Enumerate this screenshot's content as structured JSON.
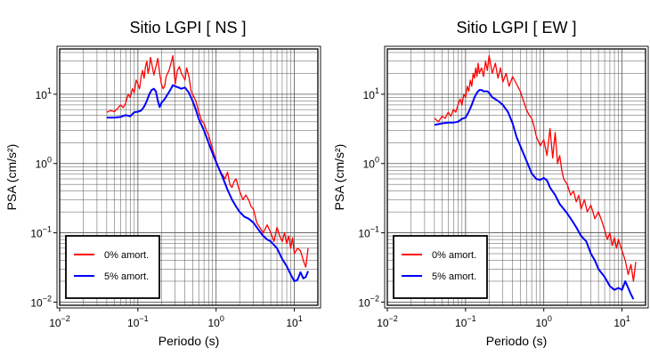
{
  "chart_data": [
    {
      "type": "line",
      "title": "Sitio LGPI [ NS ]",
      "xlabel": "Periodo (s)",
      "ylabel": "PSA (cm/s²)",
      "x_scale": "log",
      "y_scale": "log",
      "xlim": [
        0.01,
        20
      ],
      "ylim": [
        0.009,
        45
      ],
      "xticks": [
        {
          "base": "10",
          "exp": "−2"
        },
        {
          "base": "10",
          "exp": "−1"
        },
        {
          "base": "10",
          "exp": "0"
        },
        {
          "base": "10",
          "exp": "1"
        }
      ],
      "yticks": [
        {
          "base": "10",
          "exp": "−2"
        },
        {
          "base": "10",
          "exp": "−1"
        },
        {
          "base": "10",
          "exp": "0"
        },
        {
          "base": "10",
          "exp": "1"
        }
      ],
      "grid": true,
      "legend_position": "bottom-left",
      "series": [
        {
          "name": "0% amort.",
          "color": "#ff0000",
          "x": [
            0.04,
            0.045,
            0.05,
            0.055,
            0.06,
            0.065,
            0.07,
            0.075,
            0.08,
            0.085,
            0.09,
            0.095,
            0.1,
            0.105,
            0.11,
            0.115,
            0.12,
            0.125,
            0.13,
            0.135,
            0.14,
            0.145,
            0.15,
            0.16,
            0.17,
            0.18,
            0.19,
            0.2,
            0.21,
            0.22,
            0.23,
            0.24,
            0.25,
            0.26,
            0.27,
            0.28,
            0.3,
            0.32,
            0.34,
            0.36,
            0.38,
            0.4,
            0.42,
            0.45,
            0.48,
            0.5,
            0.55,
            0.6,
            0.65,
            0.7,
            0.75,
            0.8,
            0.9,
            1.0,
            1.1,
            1.2,
            1.3,
            1.4,
            1.5,
            1.6,
            1.7,
            1.8,
            2.0,
            2.2,
            2.4,
            2.6,
            2.8,
            3.0,
            3.3,
            3.6,
            4.0,
            4.5,
            5.0,
            5.5,
            6.0,
            6.5,
            7.0,
            7.5,
            8.0,
            8.5,
            9.0,
            9.5,
            10.0,
            11.0,
            12.0,
            13.0,
            14.0,
            15.0
          ],
          "values": [
            5.5,
            5.8,
            5.6,
            6.2,
            7.0,
            6.4,
            7.5,
            10.0,
            9.0,
            12.0,
            10.5,
            16.0,
            14.0,
            12.0,
            18.0,
            22.0,
            17.0,
            25.0,
            30.0,
            20.0,
            24.0,
            34.0,
            28.0,
            19.0,
            25.0,
            33.0,
            20.0,
            14.0,
            12.0,
            13.0,
            18.0,
            20.0,
            22.0,
            26.0,
            30.0,
            36.0,
            14.0,
            22.0,
            25.0,
            20.0,
            18.0,
            16.0,
            24.0,
            18.0,
            11.0,
            10.0,
            8.0,
            5.6,
            4.2,
            3.8,
            3.0,
            2.6,
            1.6,
            1.1,
            0.8,
            0.7,
            0.6,
            0.75,
            0.5,
            0.45,
            0.55,
            0.6,
            0.4,
            0.3,
            0.35,
            0.3,
            0.24,
            0.22,
            0.14,
            0.12,
            0.1,
            0.13,
            0.1,
            0.075,
            0.12,
            0.09,
            0.075,
            0.1,
            0.07,
            0.09,
            0.06,
            0.085,
            0.05,
            0.06,
            0.055,
            0.04,
            0.032,
            0.06
          ]
        },
        {
          "name": "5% amort.",
          "color": "#0000ff",
          "x": [
            0.04,
            0.05,
            0.06,
            0.07,
            0.08,
            0.09,
            0.1,
            0.11,
            0.12,
            0.13,
            0.14,
            0.15,
            0.16,
            0.17,
            0.18,
            0.19,
            0.2,
            0.22,
            0.24,
            0.26,
            0.28,
            0.3,
            0.33,
            0.36,
            0.4,
            0.45,
            0.5,
            0.55,
            0.6,
            0.7,
            0.8,
            0.9,
            1.0,
            1.2,
            1.4,
            1.6,
            1.8,
            2.0,
            2.3,
            2.6,
            3.0,
            3.5,
            4.0,
            4.5,
            5.0,
            6.0,
            7.0,
            8.0,
            9.0,
            10.0,
            11.0,
            12.0,
            13.0,
            14.0,
            15.0
          ],
          "values": [
            4.6,
            4.6,
            4.7,
            5.0,
            4.8,
            5.5,
            5.6,
            5.8,
            6.6,
            8.0,
            10.0,
            11.5,
            12.0,
            11.0,
            8.0,
            6.5,
            7.5,
            8.5,
            10.0,
            11.5,
            13.5,
            13.0,
            12.5,
            12.0,
            12.5,
            10.5,
            8.0,
            6.0,
            4.4,
            3.0,
            2.0,
            1.4,
            1.05,
            0.65,
            0.42,
            0.3,
            0.24,
            0.2,
            0.17,
            0.16,
            0.14,
            0.11,
            0.09,
            0.08,
            0.075,
            0.06,
            0.042,
            0.033,
            0.025,
            0.02,
            0.021,
            0.027,
            0.022,
            0.023,
            0.028
          ]
        }
      ]
    },
    {
      "type": "line",
      "title": "Sitio LGPI [ EW ]",
      "xlabel": "Periodo (s)",
      "ylabel": "PSA (cm/s²)",
      "x_scale": "log",
      "y_scale": "log",
      "xlim": [
        0.01,
        20
      ],
      "ylim": [
        0.009,
        45
      ],
      "xticks": [
        {
          "base": "10",
          "exp": "−2"
        },
        {
          "base": "10",
          "exp": "−1"
        },
        {
          "base": "10",
          "exp": "0"
        },
        {
          "base": "10",
          "exp": "1"
        }
      ],
      "yticks": [
        {
          "base": "10",
          "exp": "−2"
        },
        {
          "base": "10",
          "exp": "−1"
        },
        {
          "base": "10",
          "exp": "0"
        },
        {
          "base": "10",
          "exp": "1"
        }
      ],
      "grid": true,
      "legend_position": "bottom-left",
      "series": [
        {
          "name": "0% amort.",
          "color": "#ff0000",
          "x": [
            0.04,
            0.045,
            0.05,
            0.055,
            0.06,
            0.065,
            0.07,
            0.075,
            0.08,
            0.085,
            0.09,
            0.095,
            0.1,
            0.105,
            0.11,
            0.115,
            0.12,
            0.125,
            0.13,
            0.135,
            0.14,
            0.145,
            0.15,
            0.16,
            0.17,
            0.18,
            0.19,
            0.2,
            0.22,
            0.24,
            0.26,
            0.28,
            0.3,
            0.33,
            0.36,
            0.4,
            0.45,
            0.5,
            0.55,
            0.6,
            0.65,
            0.7,
            0.75,
            0.8,
            0.9,
            1.0,
            1.1,
            1.2,
            1.3,
            1.4,
            1.5,
            1.6,
            1.7,
            1.8,
            2.0,
            2.2,
            2.4,
            2.6,
            2.8,
            3.0,
            3.3,
            3.6,
            4.0,
            4.5,
            5.0,
            5.5,
            6.0,
            6.5,
            7.0,
            7.5,
            8.0,
            8.5,
            9.0,
            10.0,
            11.0,
            12.0,
            13.0,
            14.0,
            15.0
          ],
          "values": [
            4.5,
            4.0,
            4.8,
            4.5,
            5.5,
            4.8,
            6.0,
            5.5,
            7.0,
            8.5,
            7.0,
            10.0,
            9.0,
            13.0,
            11.0,
            16.0,
            13.0,
            20.0,
            17.0,
            24.0,
            18.0,
            28.0,
            20.0,
            24.0,
            18.0,
            30.0,
            22.0,
            36.0,
            20.0,
            28.0,
            17.0,
            24.0,
            15.0,
            20.0,
            13.0,
            18.0,
            14.0,
            11.0,
            8.0,
            6.0,
            5.0,
            4.5,
            3.5,
            2.5,
            1.8,
            2.2,
            1.3,
            3.2,
            1.2,
            2.8,
            1.0,
            1.3,
            0.8,
            0.6,
            0.5,
            0.35,
            0.4,
            0.28,
            0.35,
            0.22,
            0.3,
            0.2,
            0.25,
            0.16,
            0.2,
            0.15,
            0.11,
            0.08,
            0.1,
            0.065,
            0.085,
            0.06,
            0.08,
            0.055,
            0.04,
            0.025,
            0.035,
            0.02,
            0.038
          ]
        },
        {
          "name": "5% amort.",
          "color": "#0000ff",
          "x": [
            0.04,
            0.05,
            0.06,
            0.07,
            0.08,
            0.09,
            0.1,
            0.11,
            0.12,
            0.13,
            0.14,
            0.15,
            0.16,
            0.17,
            0.18,
            0.19,
            0.2,
            0.22,
            0.24,
            0.26,
            0.28,
            0.3,
            0.35,
            0.4,
            0.45,
            0.5,
            0.6,
            0.7,
            0.8,
            0.9,
            1.0,
            1.1,
            1.2,
            1.4,
            1.6,
            1.8,
            2.0,
            2.3,
            2.6,
            3.0,
            3.5,
            4.0,
            4.5,
            5.0,
            6.0,
            7.0,
            8.0,
            9.0,
            10.0,
            11.0,
            12.0,
            13.0,
            14.0
          ],
          "values": [
            3.6,
            3.8,
            3.9,
            3.9,
            4.0,
            4.4,
            4.6,
            5.6,
            7.0,
            9.0,
            10.5,
            11.5,
            11.5,
            11.0,
            11.0,
            11.0,
            10.5,
            9.0,
            8.5,
            8.0,
            7.5,
            7.0,
            5.5,
            3.8,
            2.4,
            1.8,
            1.1,
            0.72,
            0.6,
            0.58,
            0.62,
            0.57,
            0.45,
            0.35,
            0.26,
            0.22,
            0.19,
            0.15,
            0.12,
            0.09,
            0.075,
            0.05,
            0.04,
            0.03,
            0.023,
            0.017,
            0.015,
            0.016,
            0.015,
            0.02,
            0.016,
            0.013,
            0.011
          ]
        }
      ]
    }
  ]
}
